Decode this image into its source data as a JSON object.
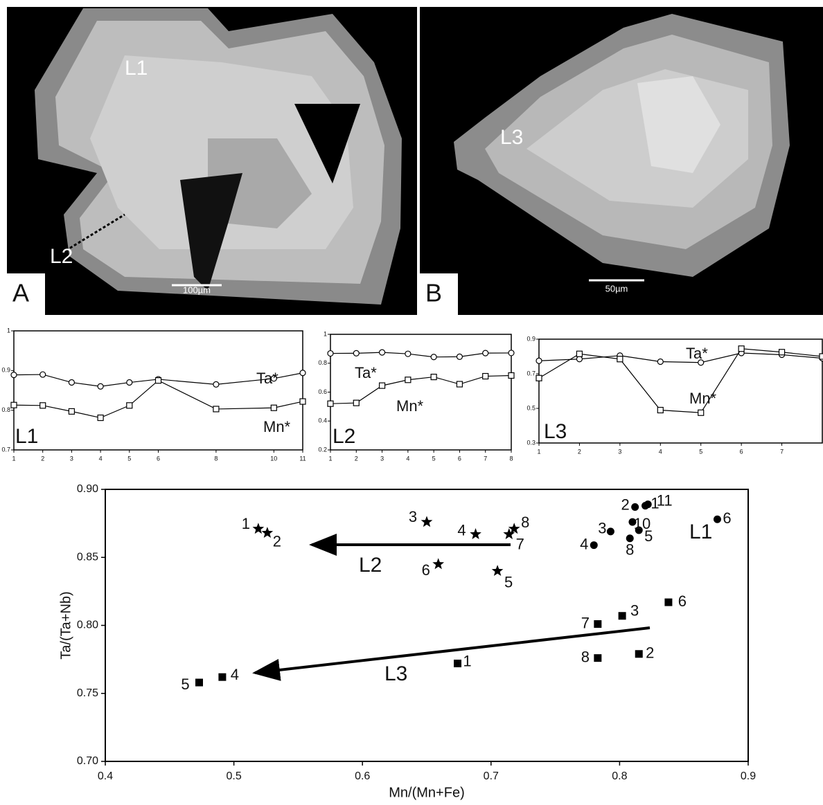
{
  "images": [
    {
      "panel": "A",
      "labels": [
        "L1",
        "L2"
      ],
      "scale_bar": "100µm"
    },
    {
      "panel": "B",
      "labels": [
        "L3"
      ],
      "scale_bar": "50µm"
    }
  ],
  "chart_data": [
    {
      "type": "line",
      "label": "L1",
      "x": [
        1,
        2,
        3,
        4,
        5,
        6,
        8,
        10,
        11
      ],
      "xlim": [
        1,
        11
      ],
      "xticks": [
        1,
        2,
        3,
        4,
        5,
        6,
        8,
        10,
        11
      ],
      "ylim": [
        0.7,
        1
      ],
      "yticks": [
        0.7,
        0.8,
        0.9,
        1
      ],
      "series": [
        {
          "name": "Ta*",
          "marker": "circle",
          "values": [
            0.889,
            0.89,
            0.87,
            0.86,
            0.87,
            0.878,
            0.865,
            0.88,
            0.894
          ]
        },
        {
          "name": "Mn*",
          "marker": "square",
          "values": [
            0.813,
            0.812,
            0.797,
            0.781,
            0.812,
            0.875,
            0.803,
            0.806,
            0.822
          ]
        }
      ]
    },
    {
      "type": "line",
      "label": "L2",
      "x": [
        1,
        2,
        3,
        4,
        5,
        6,
        7,
        8
      ],
      "xlim": [
        1,
        8
      ],
      "xticks": [
        1,
        2,
        3,
        4,
        5,
        6,
        7,
        8
      ],
      "ylim": [
        0.2,
        1
      ],
      "yticks": [
        0.2,
        0.4,
        0.6,
        0.8,
        1
      ],
      "series": [
        {
          "name": "Ta*",
          "marker": "circle",
          "values": [
            0.868,
            0.869,
            0.875,
            0.865,
            0.843,
            0.845,
            0.87,
            0.871
          ]
        },
        {
          "name": "Mn*",
          "marker": "square",
          "values": [
            0.52,
            0.525,
            0.645,
            0.685,
            0.705,
            0.655,
            0.71,
            0.715
          ]
        }
      ]
    },
    {
      "type": "line",
      "label": "L3",
      "x": [
        1,
        2,
        3,
        4,
        5,
        6,
        7,
        8
      ],
      "xlim": [
        1,
        8
      ],
      "xticks": [
        1,
        2,
        3,
        4,
        5,
        6,
        7
      ],
      "ylim": [
        0.3,
        0.9
      ],
      "yticks": [
        0.3,
        0.5,
        0.7,
        0.9
      ],
      "series": [
        {
          "name": "Ta*",
          "marker": "circle",
          "values": [
            0.775,
            0.785,
            0.805,
            0.77,
            0.765,
            0.82,
            0.81,
            0.79
          ]
        },
        {
          "name": "Mn*",
          "marker": "square",
          "values": [
            0.675,
            0.815,
            0.785,
            0.49,
            0.475,
            0.845,
            0.825,
            0.8
          ]
        }
      ]
    },
    {
      "type": "scatter",
      "x_label": "Mn/(Mn+Fe)",
      "y_label": "Ta/(Ta+Nb)",
      "xlim": [
        0.4,
        0.9
      ],
      "xticks": [
        0.4,
        0.5,
        0.6,
        0.7,
        0.8,
        0.9
      ],
      "ylim": [
        0.7,
        0.9
      ],
      "yticks": [
        {
          "value": 0.7,
          "label": "0.70"
        },
        0.75,
        {
          "value": 0.8,
          "label": "0.80"
        },
        0.85,
        {
          "value": 0.9,
          "label": "0.90"
        }
      ],
      "series": [
        {
          "name": "L1",
          "marker": "circle",
          "point_labels": [
            1,
            2,
            3,
            4,
            5,
            6,
            8,
            10,
            11
          ],
          "x": [
            0.82,
            0.812,
            0.793,
            0.78,
            0.815,
            0.876,
            0.808,
            0.81,
            0.822
          ],
          "values": [
            0.888,
            0.887,
            0.869,
            0.859,
            0.87,
            0.878,
            0.864,
            0.876,
            0.889
          ]
        },
        {
          "name": "L2",
          "marker": "star",
          "point_labels": [
            1,
            2,
            3,
            4,
            5,
            6,
            7,
            8
          ],
          "x": [
            0.519,
            0.526,
            0.65,
            0.688,
            0.705,
            0.659,
            0.714,
            0.718
          ],
          "values": [
            0.871,
            0.868,
            0.876,
            0.867,
            0.84,
            0.845,
            0.867,
            0.871
          ]
        },
        {
          "name": "L3",
          "marker": "square",
          "point_labels": [
            1,
            2,
            3,
            4,
            5,
            6,
            7,
            8
          ],
          "x": [
            0.674,
            0.815,
            0.802,
            0.491,
            0.473,
            0.838,
            0.783,
            0.783
          ],
          "values": [
            0.772,
            0.779,
            0.807,
            0.762,
            0.758,
            0.817,
            0.801,
            0.776
          ]
        }
      ]
    }
  ]
}
